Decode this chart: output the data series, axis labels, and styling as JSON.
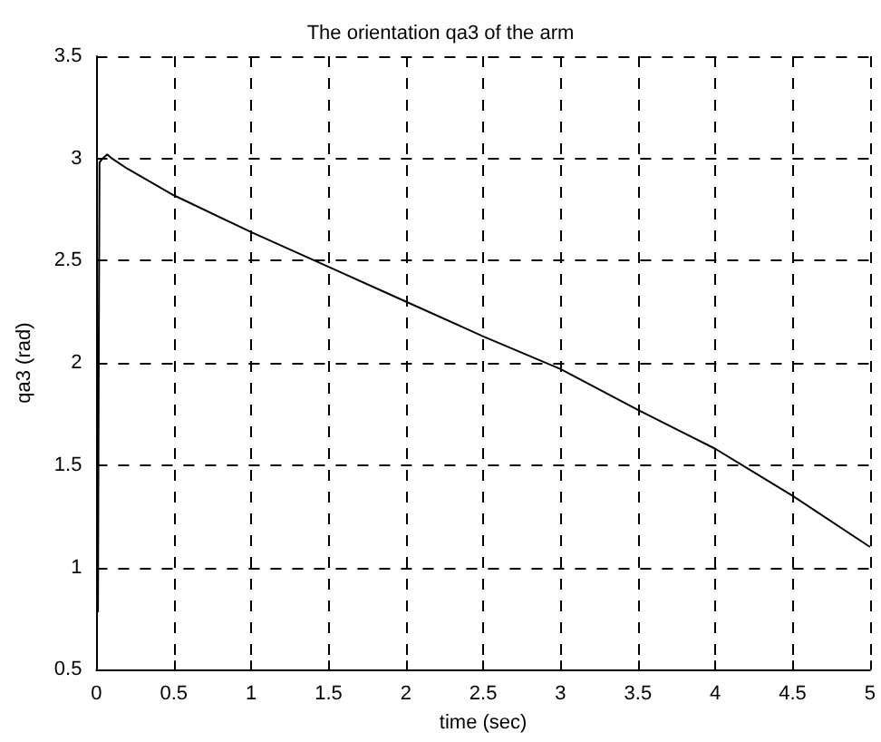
{
  "chart_data": {
    "type": "line",
    "title": "The orientation qa3 of the arm",
    "xlabel": "time (sec)",
    "ylabel": "qa3 (rad)",
    "x": [
      0.01,
      0.015,
      0.02,
      0.04,
      0.07,
      0.1,
      0.2,
      0.5,
      1.0,
      1.5,
      2.0,
      2.5,
      3.0,
      3.5,
      4.0,
      4.5,
      5.0
    ],
    "series": [
      {
        "color": "#000000",
        "values": [
          0.78,
          2.0,
          2.98,
          3.0,
          3.02,
          3.0,
          2.95,
          2.82,
          2.64,
          2.47,
          2.3,
          2.13,
          1.97,
          1.77,
          1.58,
          1.35,
          1.1
        ]
      }
    ],
    "xlim": [
      0,
      5
    ],
    "xticks": [
      0,
      0.5,
      1,
      1.5,
      2,
      2.5,
      3,
      3.5,
      4,
      4.5,
      5
    ],
    "ylim": [
      0.5,
      3.5
    ],
    "yticks": [
      0.5,
      1,
      1.5,
      2,
      2.5,
      3,
      3.5
    ],
    "grid": true,
    "line_style": "solid",
    "marker": "none"
  }
}
